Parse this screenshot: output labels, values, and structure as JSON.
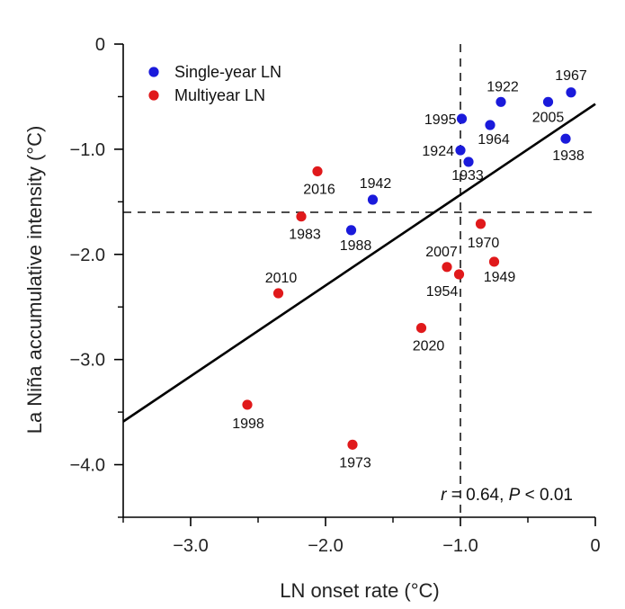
{
  "chart_data": {
    "type": "scatter",
    "xlabel": "LN onset rate (°C)",
    "ylabel": "La Niña accumulative intensity (°C)",
    "xlim": [
      -3.5,
      0
    ],
    "ylim": [
      -4.5,
      0
    ],
    "x_ticks": [
      -3.0,
      -2.0,
      -1.0,
      0
    ],
    "x_tick_labels": [
      "−3.0",
      "−2.0",
      "−1.0",
      "0"
    ],
    "y_ticks": [
      0,
      -1.0,
      -2.0,
      -3.0,
      -4.0
    ],
    "y_tick_labels": [
      "0",
      "−1.0",
      "−2.0",
      "−3.0",
      "−4.0"
    ],
    "ref_lines": {
      "x": -1.0,
      "y": -1.6
    },
    "regression": {
      "x": [
        -3.5,
        0
      ],
      "y": [
        -3.59,
        -0.57
      ]
    },
    "annotation": {
      "r_sym": "r",
      "r_text": " = 0.64, ",
      "p_sym": "P",
      "p_text": " < 0.01"
    },
    "legend": [
      {
        "name": "Single-year LN",
        "color": "#1a1adb"
      },
      {
        "name": "Multiyear LN",
        "color": "#e0191b"
      }
    ],
    "series": [
      {
        "name": "Single-year LN",
        "color": "#1a1adb",
        "points": [
          {
            "year": "1967",
            "x": -0.18,
            "y": -0.46
          },
          {
            "year": "1922",
            "x": -0.7,
            "y": -0.55
          },
          {
            "year": "2005",
            "x": -0.35,
            "y": -0.55
          },
          {
            "year": "1995",
            "x": -0.99,
            "y": -0.71
          },
          {
            "year": "1964",
            "x": -0.78,
            "y": -0.77
          },
          {
            "year": "1938",
            "x": -0.22,
            "y": -0.9
          },
          {
            "year": "1924",
            "x": -1.0,
            "y": -1.01
          },
          {
            "year": "1933",
            "x": -0.94,
            "y": -1.12
          },
          {
            "year": "1942",
            "x": -1.65,
            "y": -1.48
          },
          {
            "year": "1988",
            "x": -1.81,
            "y": -1.77
          }
        ]
      },
      {
        "name": "Multiyear LN",
        "color": "#e0191b",
        "points": [
          {
            "year": "2016",
            "x": -2.06,
            "y": -1.21
          },
          {
            "year": "1983",
            "x": -2.18,
            "y": -1.64
          },
          {
            "year": "1970",
            "x": -0.85,
            "y": -1.71
          },
          {
            "year": "1949",
            "x": -0.75,
            "y": -2.07
          },
          {
            "year": "2007",
            "x": -1.1,
            "y": -2.12
          },
          {
            "year": "1954",
            "x": -1.01,
            "y": -2.19
          },
          {
            "year": "2010",
            "x": -2.35,
            "y": -2.37
          },
          {
            "year": "2020",
            "x": -1.29,
            "y": -2.7
          },
          {
            "year": "1998",
            "x": -2.58,
            "y": -3.43
          },
          {
            "year": "1973",
            "x": -1.8,
            "y": -3.81
          }
        ]
      }
    ]
  }
}
